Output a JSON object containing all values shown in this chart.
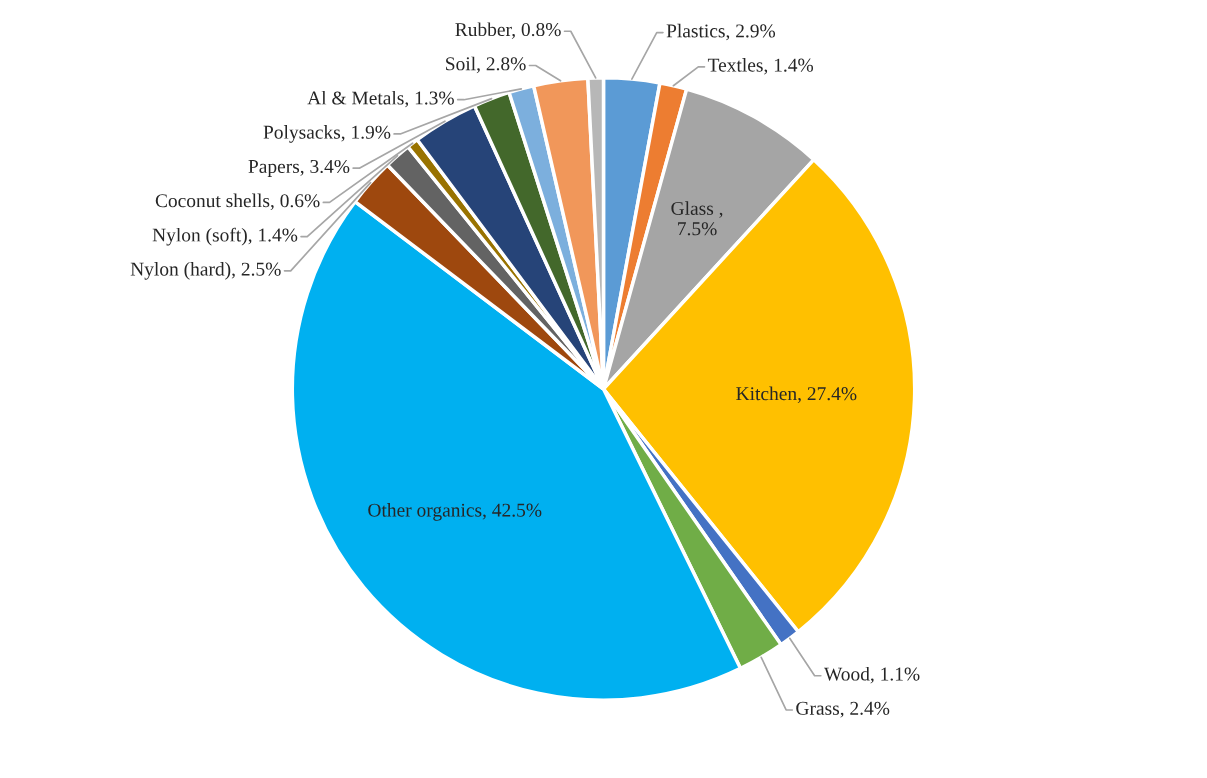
{
  "chart_data": {
    "type": "pie",
    "categories": [
      "Plastics",
      "Textles",
      "Glass ",
      "Kitchen",
      "Wood",
      "Grass",
      "Other organics",
      "Nylon (hard)",
      "Nylon (soft)",
      "Coconut shells",
      "Papers",
      "Polysacks",
      "Al & Metals",
      "Soil",
      "Rubber"
    ],
    "values": [
      2.9,
      1.4,
      7.5,
      27.4,
      1.1,
      2.4,
      42.5,
      2.5,
      1.4,
      0.6,
      3.4,
      1.9,
      1.3,
      2.8,
      0.8
    ],
    "value_labels": [
      ", 2.9%",
      ", 1.4%",
      ",\n7.5%",
      ", 27.4%",
      ", 1.1%",
      ", 2.4%",
      ", 42.5%",
      ", 2.5%",
      ", 1.4%",
      ", 0.6%",
      ", 3.4%",
      ", 1.9%",
      ", 1.3%",
      ", 2.8%",
      ", 0.8%"
    ],
    "colors": [
      "#5b9bd5",
      "#ed7d31",
      "#a5a5a5",
      "#ffc000",
      "#4472c4",
      "#70ad47",
      "#00b0f0",
      "#9e480e",
      "#636363",
      "#997300",
      "#264478",
      "#43682b",
      "#7cafdd",
      "#f1975a",
      "#b7b7b7"
    ],
    "legend": false
  }
}
